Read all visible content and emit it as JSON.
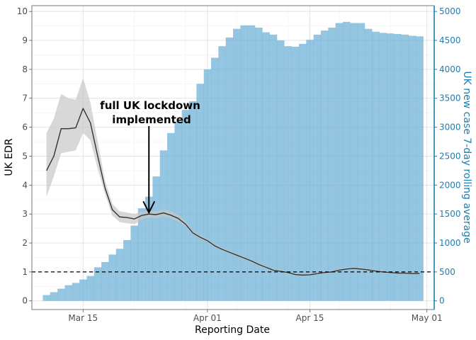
{
  "chart_data": {
    "type": "bar+line",
    "xlabel": "Reporting Date",
    "ylabel_left": "UK EDR",
    "ylabel_right": "UK new case 7-day rolling average",
    "x_range_days": [
      "2020-03-08",
      "2020-05-02"
    ],
    "x_ticks": [
      {
        "label": "Mar 15",
        "date": "2020-03-15"
      },
      {
        "label": "Apr 01",
        "date": "2020-04-01"
      },
      {
        "label": "Apr 15",
        "date": "2020-04-15"
      },
      {
        "label": "May 01",
        "date": "2020-05-01"
      }
    ],
    "ylim_left": [
      -0.3,
      10.2
    ],
    "yticks_left": [
      0,
      1,
      2,
      3,
      4,
      5,
      6,
      7,
      8,
      9,
      10
    ],
    "ylim_right": [
      -150,
      5100
    ],
    "yticks_right": [
      0,
      500,
      1000,
      1500,
      2000,
      2500,
      3000,
      3500,
      4000,
      4500,
      5000
    ],
    "grid": true,
    "reference_line": {
      "axis": "left",
      "value": 1,
      "style": "dashed"
    },
    "annotation": {
      "line1": "full UK lockdown",
      "line2": "implemented",
      "arrow_date": "2020-03-24",
      "arrow_tip_value": 3.0
    },
    "bar_color": "#6baed6",
    "line_color": "#333333",
    "band_color": "#c8c8c8",
    "right_axis_color": "#1a7fb5",
    "bars": {
      "name": "UK new case 7-day rolling average",
      "dates": [
        "2020-03-10",
        "2020-03-11",
        "2020-03-12",
        "2020-03-13",
        "2020-03-14",
        "2020-03-15",
        "2020-03-16",
        "2020-03-17",
        "2020-03-18",
        "2020-03-19",
        "2020-03-20",
        "2020-03-21",
        "2020-03-22",
        "2020-03-23",
        "2020-03-24",
        "2020-03-25",
        "2020-03-26",
        "2020-03-27",
        "2020-03-28",
        "2020-03-29",
        "2020-03-30",
        "2020-03-31",
        "2020-04-01",
        "2020-04-02",
        "2020-04-03",
        "2020-04-04",
        "2020-04-05",
        "2020-04-06",
        "2020-04-07",
        "2020-04-08",
        "2020-04-09",
        "2020-04-10",
        "2020-04-11",
        "2020-04-12",
        "2020-04-13",
        "2020-04-14",
        "2020-04-15",
        "2020-04-16",
        "2020-04-17",
        "2020-04-18",
        "2020-04-19",
        "2020-04-20",
        "2020-04-21",
        "2020-04-22",
        "2020-04-23",
        "2020-04-24",
        "2020-04-25",
        "2020-04-26",
        "2020-04-27",
        "2020-04-28",
        "2020-04-29",
        "2020-04-30"
      ],
      "values": [
        100,
        150,
        210,
        270,
        310,
        370,
        430,
        580,
        670,
        800,
        900,
        1050,
        1300,
        1600,
        1800,
        2150,
        2600,
        2900,
        3100,
        3300,
        3450,
        3750,
        4000,
        4200,
        4400,
        4550,
        4700,
        4760,
        4760,
        4720,
        4640,
        4600,
        4500,
        4400,
        4390,
        4440,
        4510,
        4600,
        4670,
        4720,
        4800,
        4820,
        4800,
        4800,
        4700,
        4650,
        4630,
        4620,
        4610,
        4600,
        4580,
        4570
      ]
    },
    "series": [
      {
        "dates": [
          "2020-03-10",
          "2020-03-11",
          "2020-03-12",
          "2020-03-13",
          "2020-03-14",
          "2020-03-15",
          "2020-03-16",
          "2020-03-17",
          "2020-03-18",
          "2020-03-19",
          "2020-03-20",
          "2020-03-21",
          "2020-03-22",
          "2020-03-23",
          "2020-03-24",
          "2020-03-25",
          "2020-03-26",
          "2020-03-27",
          "2020-03-28",
          "2020-03-29",
          "2020-03-30",
          "2020-03-31",
          "2020-04-01",
          "2020-04-02",
          "2020-04-03",
          "2020-04-04",
          "2020-04-05",
          "2020-04-06",
          "2020-04-07",
          "2020-04-08",
          "2020-04-09",
          "2020-04-10",
          "2020-04-11",
          "2020-04-12",
          "2020-04-13",
          "2020-04-14",
          "2020-04-15",
          "2020-04-16",
          "2020-04-17",
          "2020-04-18",
          "2020-04-19",
          "2020-04-20",
          "2020-04-21",
          "2020-04-22",
          "2020-04-23",
          "2020-04-24",
          "2020-04-25",
          "2020-04-26",
          "2020-04-27",
          "2020-04-28",
          "2020-04-29",
          "2020-04-30"
        ],
        "values": [
          4.5,
          5.0,
          5.95,
          5.95,
          5.98,
          6.65,
          6.15,
          5.0,
          3.9,
          3.15,
          2.9,
          2.88,
          2.83,
          2.95,
          3.0,
          2.98,
          3.04,
          2.96,
          2.85,
          2.65,
          2.35,
          2.2,
          2.08,
          1.9,
          1.78,
          1.68,
          1.58,
          1.48,
          1.38,
          1.26,
          1.16,
          1.06,
          1.02,
          0.98,
          0.91,
          0.89,
          0.9,
          0.94,
          0.98,
          1.0,
          1.06,
          1.1,
          1.12,
          1.1,
          1.07,
          1.03,
          1.0,
          0.98,
          0.96,
          0.96,
          0.94,
          0.95
        ],
        "lower": [
          3.6,
          4.3,
          5.1,
          5.15,
          5.2,
          5.8,
          5.55,
          4.55,
          3.7,
          2.95,
          2.72,
          2.68,
          2.65,
          2.8,
          2.88,
          2.86,
          2.92,
          2.85,
          2.75,
          2.58,
          2.3,
          2.15,
          2.03,
          1.86,
          1.74,
          1.64,
          1.54,
          1.44,
          1.34,
          1.22,
          1.12,
          1.03,
          0.99,
          0.95,
          0.88,
          0.86,
          0.87,
          0.91,
          0.95,
          0.97,
          1.03,
          1.07,
          1.09,
          1.07,
          1.04,
          1.0,
          0.97,
          0.95,
          0.93,
          0.93,
          0.91,
          0.92
        ],
        "upper": [
          5.8,
          6.3,
          7.15,
          7.0,
          6.95,
          7.7,
          6.85,
          5.5,
          4.15,
          3.35,
          3.1,
          3.05,
          3.0,
          3.08,
          3.12,
          3.1,
          3.18,
          3.1,
          2.97,
          2.75,
          2.42,
          2.26,
          2.14,
          1.95,
          1.83,
          1.72,
          1.62,
          1.52,
          1.42,
          1.3,
          1.2,
          1.1,
          1.06,
          1.02,
          0.95,
          0.93,
          0.94,
          0.98,
          1.02,
          1.04,
          1.1,
          1.14,
          1.16,
          1.14,
          1.11,
          1.07,
          1.04,
          1.02,
          1.0,
          1.0,
          0.98,
          0.99
        ]
      }
    ]
  }
}
